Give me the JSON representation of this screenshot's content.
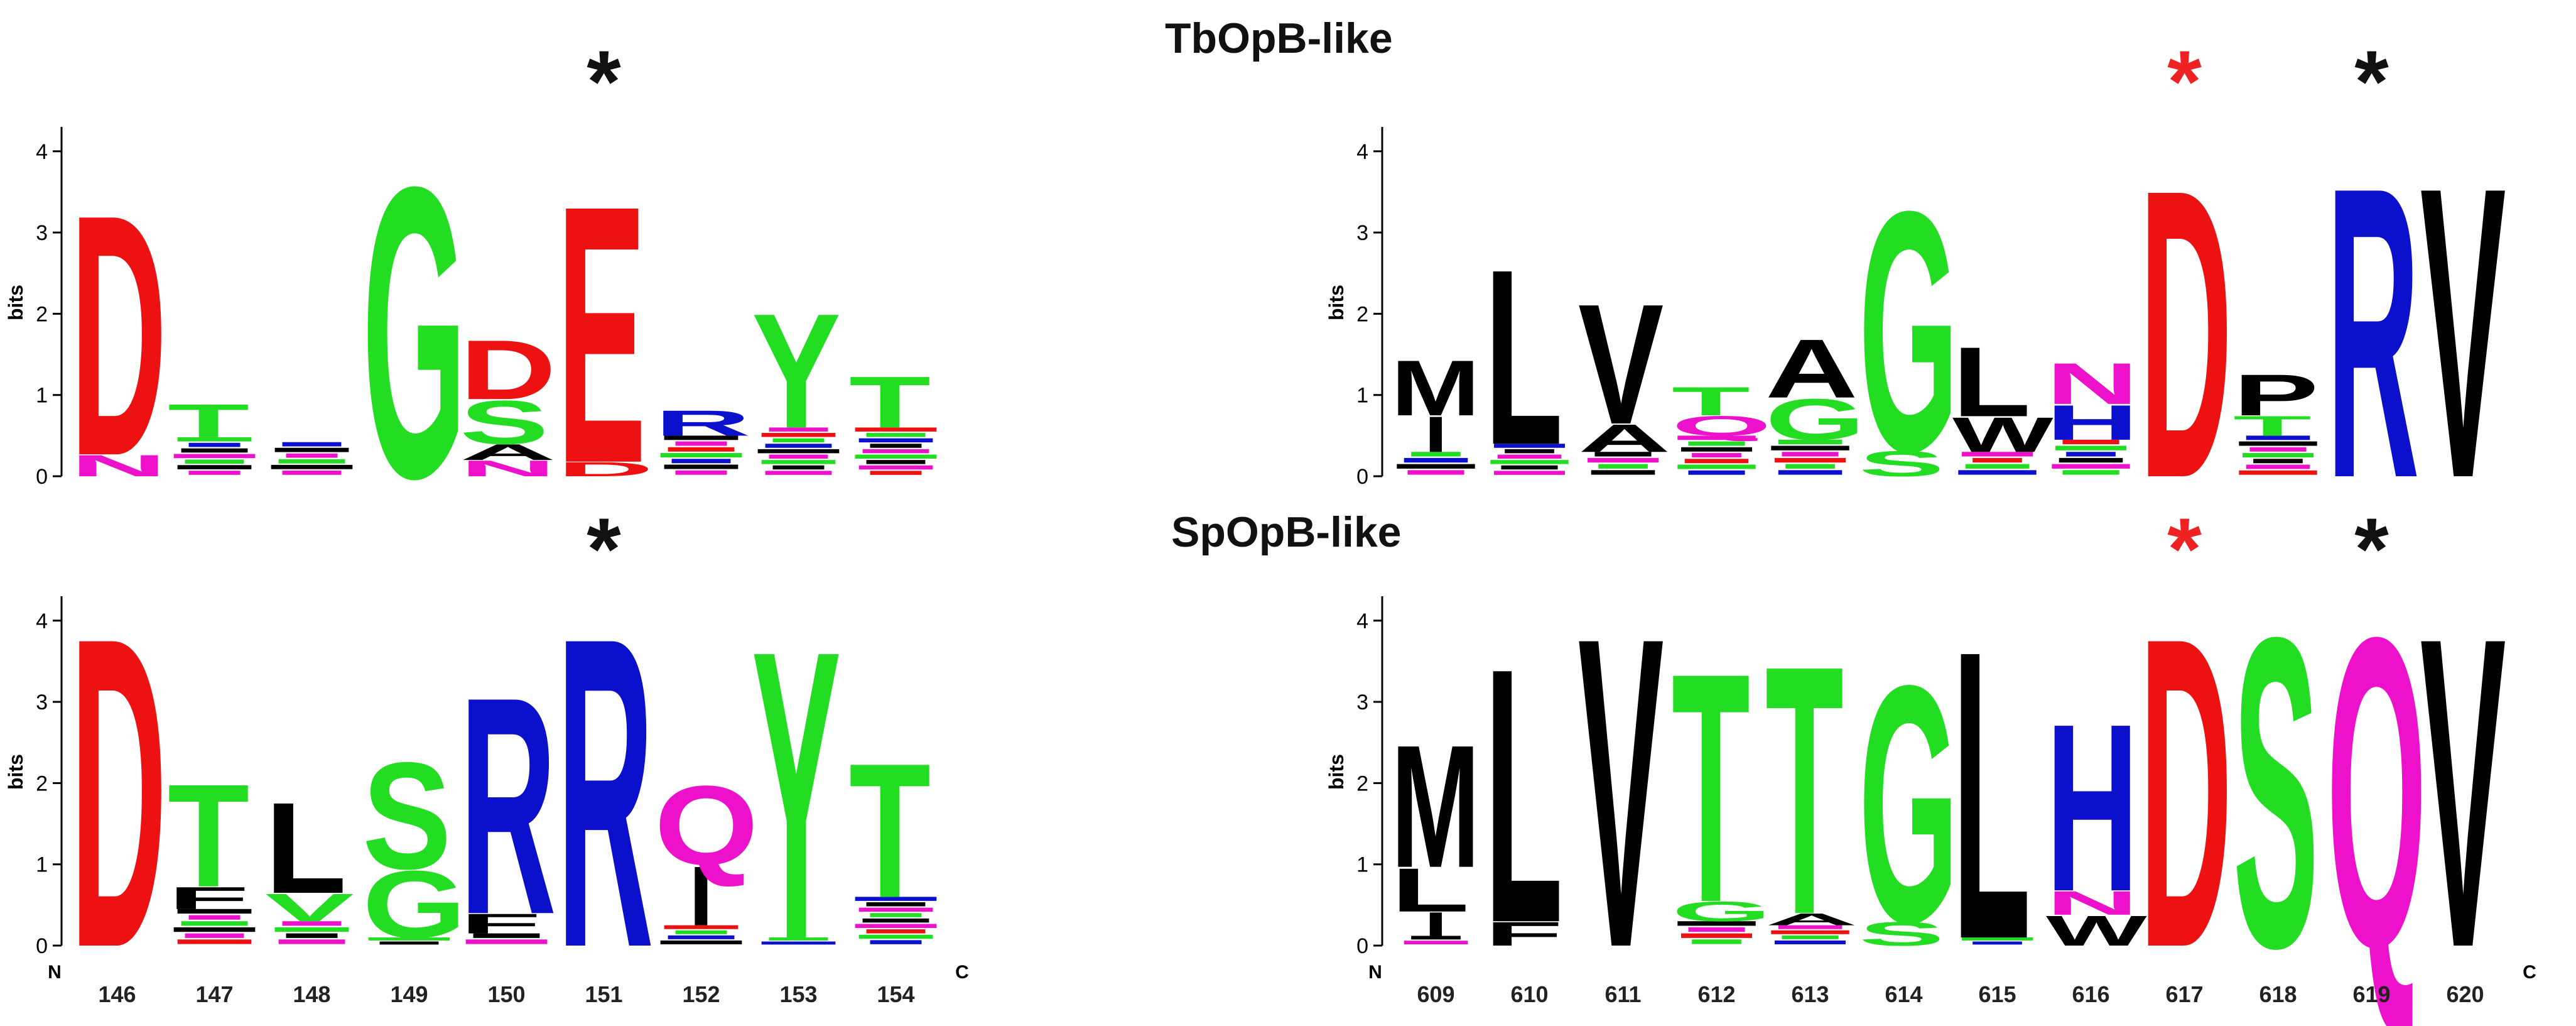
{
  "titles": {
    "top": "TbOpB-like",
    "bottom": "SpOpB-like"
  },
  "axis": {
    "ylabel": "bits",
    "ticks": [
      "0",
      "1",
      "2",
      "3",
      "4"
    ],
    "n_label": "N",
    "c_label": "C"
  },
  "colors": {
    "red": "#ee1111",
    "green": "#22dd22",
    "blue": "#0a10cc",
    "black": "#000000",
    "magenta": "#ee11cc",
    "star_black": "#111111",
    "star_red": "#ee2222"
  },
  "chart_data": [
    {
      "type": "sequence-logo",
      "panel": "top-left",
      "ylim": [
        0,
        4.3
      ],
      "positions": [
        {
          "label": "146",
          "star": null,
          "stack": [
            [
              "N",
              0.27,
              "magenta"
            ],
            [
              "D",
              3.05,
              "red"
            ]
          ]
        },
        {
          "label": "147",
          "star": null,
          "stack": [
            [
              "·",
              0.48,
              "mixed"
            ],
            [
              "T",
              0.42,
              "green"
            ]
          ]
        },
        {
          "label": "148",
          "star": null,
          "stack": [
            [
              "·",
              0.42,
              "mixed"
            ]
          ]
        },
        {
          "label": "149",
          "star": null,
          "stack": [
            [
              "G",
              3.68,
              "green"
            ]
          ]
        },
        {
          "label": "150",
          "star": null,
          "stack": [
            [
              "N",
              0.2,
              "magenta"
            ],
            [
              "A",
              0.2,
              "black"
            ],
            [
              "S",
              0.55,
              "green"
            ],
            [
              "D",
              0.75,
              "red"
            ]
          ]
        },
        {
          "label": "151",
          "star": "black",
          "stack": [
            [
              "D",
              0.18,
              "red"
            ],
            [
              "E",
              3.26,
              "red"
            ]
          ]
        },
        {
          "label": "152",
          "star": null,
          "stack": [
            [
              "·",
              0.5,
              "mixed"
            ],
            [
              "R",
              0.32,
              "blue"
            ]
          ]
        },
        {
          "label": "153",
          "star": null,
          "stack": [
            [
              "·",
              0.6,
              "mixed"
            ],
            [
              "Y",
              1.45,
              "green"
            ]
          ]
        },
        {
          "label": "154",
          "star": null,
          "stack": [
            [
              "·",
              0.6,
              "mixed"
            ],
            [
              "T",
              0.65,
              "green"
            ]
          ]
        }
      ]
    },
    {
      "type": "sequence-logo",
      "panel": "top-right",
      "ylim": [
        0,
        4.3
      ],
      "positions": [
        {
          "label": "609",
          "star": null,
          "stack": [
            [
              "·",
              0.3,
              "mixed"
            ],
            [
              "I",
              0.45,
              "black"
            ],
            [
              "M",
              0.7,
              "black"
            ]
          ]
        },
        {
          "label": "610",
          "star": null,
          "stack": [
            [
              "·",
              0.4,
              "mixed"
            ],
            [
              "L",
              2.22,
              "black"
            ]
          ]
        },
        {
          "label": "611",
          "star": null,
          "stack": [
            [
              "·",
              0.3,
              "mixed"
            ],
            [
              "A",
              0.35,
              "black"
            ],
            [
              "V",
              1.52,
              "black"
            ]
          ]
        },
        {
          "label": "612",
          "star": null,
          "stack": [
            [
              "·",
              0.5,
              "mixed"
            ],
            [
              "Q",
              0.25,
              "magenta"
            ],
            [
              "T",
              0.36,
              "green"
            ]
          ]
        },
        {
          "label": "613",
          "star": null,
          "stack": [
            [
              "·",
              0.45,
              "mixed"
            ],
            [
              "G",
              0.52,
              "green"
            ],
            [
              "A",
              0.74,
              "black"
            ]
          ]
        },
        {
          "label": "614",
          "star": null,
          "stack": [
            [
              "S",
              0.32,
              "green"
            ],
            [
              "G",
              3.04,
              "green"
            ]
          ]
        },
        {
          "label": "615",
          "star": null,
          "stack": [
            [
              "·",
              0.3,
              "mixed"
            ],
            [
              "W",
              0.44,
              "black"
            ],
            [
              "L",
              0.88,
              "black"
            ]
          ]
        },
        {
          "label": "616",
          "star": null,
          "stack": [
            [
              "·",
              0.45,
              "mixed"
            ],
            [
              "H",
              0.44,
              "blue"
            ],
            [
              "N",
              0.52,
              "magenta"
            ]
          ]
        },
        {
          "label": "617",
          "star": "red",
          "stack": [
            [
              "D",
              3.65,
              "red"
            ]
          ]
        },
        {
          "label": "618",
          "star": null,
          "stack": [
            [
              "·",
              0.5,
              "mixed"
            ],
            [
              "T",
              0.25,
              "green"
            ],
            [
              "P",
              0.52,
              "black"
            ]
          ]
        },
        {
          "label": "619",
          "star": "black",
          "stack": [
            [
              "R",
              3.68,
              "blue"
            ]
          ]
        },
        {
          "label": "620",
          "star": null,
          "stack": [
            [
              "V",
              3.68,
              "black"
            ]
          ]
        }
      ]
    },
    {
      "type": "sequence-logo",
      "panel": "bottom-left",
      "ylim": [
        0,
        4.3
      ],
      "positions": [
        {
          "label": "146",
          "star": null,
          "stack": [
            [
              "D",
              3.92,
              "red"
            ]
          ]
        },
        {
          "label": "147",
          "star": null,
          "stack": [
            [
              "·",
              0.45,
              "mixed"
            ],
            [
              "F",
              0.28,
              "black"
            ],
            [
              "T",
              1.3,
              "green"
            ]
          ]
        },
        {
          "label": "148",
          "star": null,
          "stack": [
            [
              "·",
              0.3,
              "mixed"
            ],
            [
              "V",
              0.35,
              "green"
            ],
            [
              "L",
              1.15,
              "black"
            ]
          ]
        },
        {
          "label": "149",
          "star": null,
          "stack": [
            [
              "·",
              0.1,
              "mixed"
            ],
            [
              "G",
              0.85,
              "green"
            ],
            [
              "S",
              1.35,
              "green"
            ]
          ]
        },
        {
          "label": "150",
          "star": null,
          "stack": [
            [
              "·",
              0.15,
              "mixed"
            ],
            [
              "F",
              0.25,
              "black"
            ],
            [
              "R",
              2.75,
              "blue"
            ]
          ]
        },
        {
          "label": "151",
          "star": "black",
          "stack": [
            [
              "R",
              3.92,
              "blue"
            ]
          ]
        },
        {
          "label": "152",
          "star": null,
          "stack": [
            [
              "·",
              0.25,
              "mixed"
            ],
            [
              "I",
              0.75,
              "black"
            ],
            [
              "Q",
              1.0,
              "magenta"
            ]
          ]
        },
        {
          "label": "153",
          "star": null,
          "stack": [
            [
              "·",
              0.1,
              "mixed"
            ],
            [
              "Y",
              3.65,
              "green"
            ]
          ]
        },
        {
          "label": "154",
          "star": null,
          "stack": [
            [
              "·",
              0.6,
              "mixed"
            ],
            [
              "T",
              1.7,
              "green"
            ]
          ]
        }
      ]
    },
    {
      "type": "sequence-logo",
      "panel": "bottom-right",
      "ylim": [
        0,
        4.3
      ],
      "positions": [
        {
          "label": "609",
          "star": null,
          "stack": [
            [
              "·",
              0.12,
              "mixed"
            ],
            [
              "I",
              0.3,
              "black"
            ],
            [
              "L",
              0.55,
              "black"
            ],
            [
              "M",
              1.55,
              "black"
            ]
          ]
        },
        {
          "label": "610",
          "star": null,
          "stack": [
            [
              "F",
              0.3,
              "black"
            ],
            [
              "L",
              3.22,
              "black"
            ]
          ]
        },
        {
          "label": "611",
          "star": null,
          "stack": [
            [
              "V",
              3.92,
              "black"
            ]
          ]
        },
        {
          "label": "612",
          "star": null,
          "stack": [
            [
              "·",
              0.3,
              "mixed"
            ],
            [
              "G",
              0.25,
              "green"
            ],
            [
              "T",
              2.9,
              "green"
            ]
          ]
        },
        {
          "label": "613",
          "star": null,
          "stack": [
            [
              "·",
              0.25,
              "mixed"
            ],
            [
              "A",
              0.15,
              "black"
            ],
            [
              "T",
              3.15,
              "green"
            ]
          ]
        },
        {
          "label": "614",
          "star": null,
          "stack": [
            [
              "S",
              0.3,
              "green"
            ],
            [
              "G",
              3.0,
              "green"
            ]
          ]
        },
        {
          "label": "615",
          "star": null,
          "stack": [
            [
              "·",
              0.1,
              "mixed"
            ],
            [
              "L",
              3.65,
              "black"
            ]
          ]
        },
        {
          "label": "616",
          "star": null,
          "stack": [
            [
              "W",
              0.38,
              "black"
            ],
            [
              "N",
              0.3,
              "magenta"
            ],
            [
              "H",
              2.12,
              "blue"
            ]
          ]
        },
        {
          "label": "617",
          "star": "red",
          "stack": [
            [
              "D",
              3.92,
              "red"
            ]
          ]
        },
        {
          "label": "618",
          "star": null,
          "stack": [
            [
              "S",
              3.92,
              "green"
            ]
          ]
        },
        {
          "label": "619",
          "star": "black",
          "stack": [
            [
              "Q",
              3.92,
              "magenta"
            ]
          ]
        },
        {
          "label": "620",
          "star": null,
          "stack": [
            [
              "V",
              3.92,
              "black"
            ]
          ]
        }
      ]
    }
  ]
}
